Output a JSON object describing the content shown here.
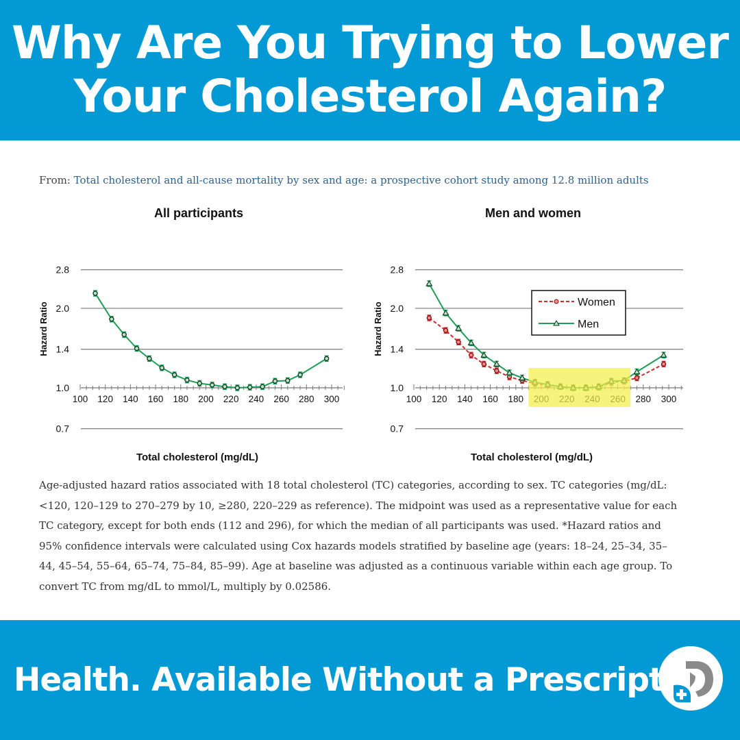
{
  "header": {
    "title_line1": "Why Are You Trying to Lower",
    "title_line2": "Your Cholesterol Again?"
  },
  "source": {
    "prefix": "From:",
    "link_text": "Total cholesterol and all-cause mortality by sex and age: a prospective cohort study among 12.8 million adults"
  },
  "caption_lines": [
    "Age-adjusted hazard ratios associated with 18 total cholesterol (TC) categories, according to sex. TC categories (mg/dL:",
    "<120, 120–129 to 270–279 by 10, ≥280, 220–229 as reference). The midpoint was used as a representative value for each",
    "TC category, except for both ends (112 and 296), for which the median of all participants was used. *Hazard ratios and",
    "95% confidence intervals were calculated using Cox hazards models stratified by baseline age (years: 18–24, 25–34, 35–",
    "44, 45–54, 55–64, 65–74, 75–84, 85–99). Age at baseline was adjusted as a continuous variable within each age group. To",
    "convert TC from mg/dL to mmol/L, multiply by 0.02586."
  ],
  "footer": {
    "tagline": "Health. Available Without a Prescription",
    "logo_text": "D"
  },
  "colors": {
    "brand_blue": "#0399d4",
    "men_green": "#1a9f55",
    "women_red": "#d42a2a",
    "highlight": "#f3f04a"
  },
  "chart_data": [
    {
      "type": "line",
      "title": "All participants",
      "xlabel": "Total cholesterol (mg/dL)",
      "ylabel": "Hazard Ratio",
      "y_scale": "log",
      "ylim": [
        0.7,
        2.8
      ],
      "xlim": [
        100,
        310
      ],
      "y_ticks": [
        "0.7",
        "1.0",
        "1.4",
        "2.0",
        "2.8"
      ],
      "x_ticks": [
        "100",
        "120",
        "140",
        "160",
        "180",
        "200",
        "220",
        "240",
        "260",
        "280",
        "300"
      ],
      "grid": true,
      "x": [
        112,
        125,
        135,
        145,
        155,
        165,
        175,
        185,
        195,
        205,
        215,
        225,
        235,
        245,
        255,
        265,
        275,
        296
      ],
      "series": [
        {
          "color": "#1a9f55",
          "marker": "circle",
          "values": [
            2.28,
            1.82,
            1.59,
            1.41,
            1.29,
            1.19,
            1.12,
            1.07,
            1.04,
            1.025,
            1.01,
            1.0,
            1.005,
            1.01,
            1.06,
            1.065,
            1.12,
            1.29
          ]
        }
      ]
    },
    {
      "type": "line",
      "title": "Men and women",
      "xlabel": "Total cholesterol (mg/dL)",
      "ylabel": "Hazard Ratio",
      "y_scale": "log",
      "ylim": [
        0.7,
        2.8
      ],
      "xlim": [
        100,
        310
      ],
      "y_ticks": [
        "0.7",
        "1.0",
        "1.4",
        "2.0",
        "2.8"
      ],
      "x_ticks": [
        "100",
        "120",
        "140",
        "160",
        "180",
        "200",
        "220",
        "240",
        "260",
        "280",
        "300"
      ],
      "grid": true,
      "legend": "top-right",
      "highlight_x_range": [
        190,
        270
      ],
      "x": [
        112,
        125,
        135,
        145,
        155,
        165,
        175,
        185,
        195,
        205,
        215,
        225,
        235,
        245,
        255,
        265,
        275,
        296
      ],
      "series": [
        {
          "name": "Women",
          "color": "#d42a2a",
          "style": "dashed",
          "marker": "circle",
          "values": [
            1.84,
            1.65,
            1.49,
            1.33,
            1.23,
            1.16,
            1.1,
            1.065,
            1.04,
            1.025,
            1.01,
            1.0,
            1.0,
            1.005,
            1.05,
            1.06,
            1.09,
            1.23
          ]
        },
        {
          "name": "Men",
          "color": "#1a9f55",
          "style": "solid",
          "marker": "triangle",
          "values": [
            2.48,
            1.92,
            1.68,
            1.48,
            1.33,
            1.23,
            1.14,
            1.09,
            1.05,
            1.03,
            1.01,
            1.0,
            1.0,
            1.01,
            1.06,
            1.065,
            1.15,
            1.33
          ]
        }
      ]
    }
  ]
}
